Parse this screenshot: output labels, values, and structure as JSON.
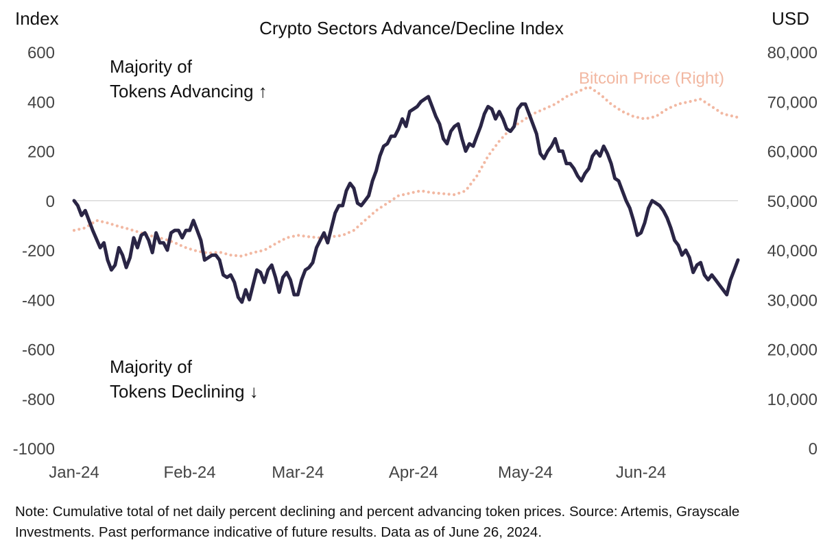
{
  "chart_data": {
    "type": "line",
    "title": "Crypto Sectors Advance/Decline Index",
    "ylabel_left": "Index",
    "ylabel_right": "USD",
    "xlabel": "",
    "x_ticks": [
      "Jan-24",
      "Feb-24",
      "Mar-24",
      "Apr-24",
      "May-24",
      "Jun-24"
    ],
    "y_left_ticks": [
      "600",
      "400",
      "200",
      "0",
      "-200",
      "-400",
      "-600",
      "-800",
      "-1000"
    ],
    "y_right_ticks": [
      "80,000",
      "70,000",
      "60,000",
      "50,000",
      "40,000",
      "30,000",
      "20,000",
      "10,000",
      "0"
    ],
    "ylim_left": [
      -1000,
      600
    ],
    "ylim_right": [
      0,
      80000
    ],
    "xlim_days": [
      0,
      178
    ],
    "zero_line": true,
    "annotations": {
      "advancing": [
        "Majority of",
        "Tokens Advancing ↑"
      ],
      "declining": [
        "Majority of",
        "Tokens Declining ↓"
      ]
    },
    "series": [
      {
        "name": "Advance/Decline Index",
        "axis": "left",
        "color": "#2a2545",
        "style": "solid",
        "points": [
          [
            0,
            0
          ],
          [
            1,
            -20
          ],
          [
            2,
            -60
          ],
          [
            3,
            -40
          ],
          [
            5,
            -120
          ],
          [
            7,
            -190
          ],
          [
            8,
            -170
          ],
          [
            9,
            -240
          ],
          [
            10,
            -280
          ],
          [
            11,
            -260
          ],
          [
            12,
            -190
          ],
          [
            13,
            -220
          ],
          [
            14,
            -270
          ],
          [
            15,
            -230
          ],
          [
            16,
            -150
          ],
          [
            17,
            -190
          ],
          [
            18,
            -140
          ],
          [
            19,
            -130
          ],
          [
            20,
            -160
          ],
          [
            21,
            -210
          ],
          [
            22,
            -130
          ],
          [
            23,
            -170
          ],
          [
            24,
            -170
          ],
          [
            25,
            -200
          ],
          [
            26,
            -130
          ],
          [
            27,
            -120
          ],
          [
            28,
            -120
          ],
          [
            29,
            -150
          ],
          [
            30,
            -120
          ],
          [
            31,
            -120
          ],
          [
            32,
            -80
          ],
          [
            33,
            -120
          ],
          [
            34,
            -160
          ],
          [
            35,
            -240
          ],
          [
            36,
            -230
          ],
          [
            37,
            -220
          ],
          [
            38,
            -220
          ],
          [
            39,
            -240
          ],
          [
            40,
            -300
          ],
          [
            41,
            -310
          ],
          [
            42,
            -300
          ],
          [
            43,
            -330
          ],
          [
            44,
            -390
          ],
          [
            45,
            -410
          ],
          [
            46,
            -360
          ],
          [
            47,
            -400
          ],
          [
            48,
            -340
          ],
          [
            49,
            -280
          ],
          [
            50,
            -290
          ],
          [
            51,
            -330
          ],
          [
            52,
            -280
          ],
          [
            53,
            -260
          ],
          [
            54,
            -310
          ],
          [
            55,
            -370
          ],
          [
            56,
            -310
          ],
          [
            57,
            -290
          ],
          [
            58,
            -320
          ],
          [
            59,
            -380
          ],
          [
            60,
            -380
          ],
          [
            61,
            -320
          ],
          [
            62,
            -280
          ],
          [
            63,
            -270
          ],
          [
            64,
            -250
          ],
          [
            65,
            -190
          ],
          [
            66,
            -160
          ],
          [
            67,
            -130
          ],
          [
            68,
            -170
          ],
          [
            69,
            -110
          ],
          [
            70,
            -50
          ],
          [
            71,
            -20
          ],
          [
            72,
            -20
          ],
          [
            73,
            40
          ],
          [
            74,
            70
          ],
          [
            75,
            50
          ],
          [
            76,
            -10
          ],
          [
            77,
            -20
          ],
          [
            78,
            0
          ],
          [
            79,
            20
          ],
          [
            80,
            80
          ],
          [
            81,
            120
          ],
          [
            82,
            180
          ],
          [
            83,
            220
          ],
          [
            84,
            230
          ],
          [
            85,
            260
          ],
          [
            86,
            260
          ],
          [
            87,
            290
          ],
          [
            88,
            330
          ],
          [
            89,
            300
          ],
          [
            90,
            360
          ],
          [
            91,
            370
          ],
          [
            92,
            380
          ],
          [
            93,
            400
          ],
          [
            94,
            410
          ],
          [
            95,
            420
          ],
          [
            96,
            380
          ],
          [
            97,
            340
          ],
          [
            98,
            310
          ],
          [
            99,
            250
          ],
          [
            100,
            230
          ],
          [
            101,
            280
          ],
          [
            102,
            300
          ],
          [
            103,
            310
          ],
          [
            104,
            250
          ],
          [
            105,
            200
          ],
          [
            106,
            230
          ],
          [
            107,
            220
          ],
          [
            108,
            260
          ],
          [
            109,
            300
          ],
          [
            110,
            350
          ],
          [
            111,
            380
          ],
          [
            112,
            370
          ],
          [
            113,
            330
          ],
          [
            114,
            360
          ],
          [
            115,
            330
          ],
          [
            116,
            290
          ],
          [
            117,
            280
          ],
          [
            118,
            300
          ],
          [
            119,
            370
          ],
          [
            120,
            390
          ],
          [
            121,
            390
          ],
          [
            122,
            350
          ],
          [
            123,
            310
          ],
          [
            124,
            270
          ],
          [
            125,
            190
          ],
          [
            126,
            170
          ],
          [
            127,
            200
          ],
          [
            128,
            220
          ],
          [
            129,
            250
          ],
          [
            130,
            200
          ],
          [
            131,
            200
          ],
          [
            132,
            150
          ],
          [
            133,
            150
          ],
          [
            134,
            130
          ],
          [
            135,
            100
          ],
          [
            136,
            80
          ],
          [
            137,
            110
          ],
          [
            138,
            130
          ],
          [
            139,
            180
          ],
          [
            140,
            200
          ],
          [
            141,
            180
          ],
          [
            142,
            220
          ],
          [
            143,
            190
          ],
          [
            144,
            150
          ],
          [
            145,
            90
          ],
          [
            146,
            80
          ],
          [
            147,
            40
          ],
          [
            148,
            0
          ],
          [
            149,
            -30
          ],
          [
            150,
            -80
          ],
          [
            151,
            -140
          ],
          [
            152,
            -130
          ],
          [
            153,
            -90
          ],
          [
            154,
            -30
          ],
          [
            155,
            0
          ],
          [
            156,
            -10
          ],
          [
            157,
            -20
          ],
          [
            158,
            -40
          ],
          [
            159,
            -70
          ],
          [
            160,
            -110
          ],
          [
            161,
            -160
          ],
          [
            162,
            -180
          ],
          [
            163,
            -220
          ],
          [
            164,
            -200
          ],
          [
            165,
            -230
          ],
          [
            166,
            -290
          ],
          [
            167,
            -260
          ],
          [
            168,
            -250
          ],
          [
            169,
            -300
          ],
          [
            170,
            -320
          ],
          [
            171,
            -300
          ],
          [
            172,
            -320
          ],
          [
            173,
            -340
          ],
          [
            174,
            -360
          ],
          [
            175,
            -380
          ],
          [
            176,
            -320
          ],
          [
            177,
            -280
          ],
          [
            178,
            -240
          ]
        ]
      },
      {
        "name": "Bitcoin Price (Right)",
        "axis": "right",
        "color": "#f2b8a2",
        "style": "dotted",
        "points": [
          [
            0,
            44000
          ],
          [
            3,
            44500
          ],
          [
            6,
            46000
          ],
          [
            9,
            45500
          ],
          [
            12,
            44800
          ],
          [
            15,
            44200
          ],
          [
            18,
            43500
          ],
          [
            21,
            42800
          ],
          [
            24,
            42300
          ],
          [
            27,
            41500
          ],
          [
            30,
            40500
          ],
          [
            33,
            39800
          ],
          [
            36,
            39400
          ],
          [
            39,
            39600
          ],
          [
            42,
            39000
          ],
          [
            45,
            38800
          ],
          [
            48,
            39500
          ],
          [
            51,
            40000
          ],
          [
            54,
            41300
          ],
          [
            57,
            42500
          ],
          [
            60,
            43000
          ],
          [
            63,
            42700
          ],
          [
            66,
            42500
          ],
          [
            69,
            42700
          ],
          [
            72,
            43000
          ],
          [
            75,
            44000
          ],
          [
            78,
            46000
          ],
          [
            81,
            48000
          ],
          [
            84,
            49500
          ],
          [
            87,
            51000
          ],
          [
            90,
            51500
          ],
          [
            93,
            52000
          ],
          [
            96,
            51600
          ],
          [
            99,
            51400
          ],
          [
            102,
            51200
          ],
          [
            105,
            52000
          ],
          [
            108,
            55000
          ],
          [
            111,
            59000
          ],
          [
            114,
            62000
          ],
          [
            117,
            64500
          ],
          [
            120,
            66000
          ],
          [
            123,
            67500
          ],
          [
            126,
            68500
          ],
          [
            129,
            69500
          ],
          [
            132,
            71000
          ],
          [
            135,
            72000
          ],
          [
            138,
            73000
          ],
          [
            141,
            71500
          ],
          [
            144,
            69500
          ],
          [
            147,
            68000
          ],
          [
            150,
            67000
          ],
          [
            153,
            66500
          ],
          [
            156,
            67000
          ],
          [
            159,
            68500
          ],
          [
            162,
            69500
          ],
          [
            165,
            70000
          ],
          [
            168,
            70500
          ],
          [
            171,
            69000
          ],
          [
            174,
            67500
          ],
          [
            177,
            67000
          ],
          [
            178,
            66800
          ]
        ]
      }
    ]
  },
  "legend": {
    "bitcoin_label": "Bitcoin Price (Right)"
  },
  "footnote": "Note: Cumulative total of net daily percent declining and percent advancing token prices. Source: Artemis, Grayscale Investments. Past performance indicative of future results. Data as of June 26, 2024."
}
